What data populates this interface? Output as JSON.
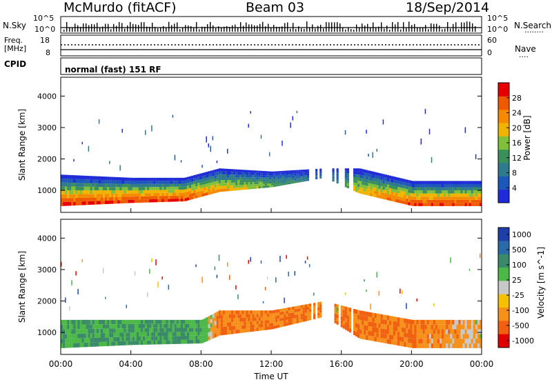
{
  "header": {
    "station": "McMurdo (fitACF)",
    "beam": "Beam 03",
    "date": "18/Sep/2014"
  },
  "strip": {
    "nsky_label": "N.Sky",
    "nsearch_label": "N.Search",
    "left_ticks": [
      "10^5",
      "10^0"
    ],
    "right_ticks": [
      "10^5",
      "10^0"
    ],
    "freq_label_1": "Freq.",
    "freq_label_2": "[MHz]",
    "freq_ticks": [
      "18",
      "8"
    ],
    "nave_label": "Nave",
    "nave_ticks": [
      "60",
      "0"
    ],
    "cpid_label": "CPID",
    "cpid_value": "normal (fast) 151 RF"
  },
  "colors": {
    "power": [
      "#1f2bd6",
      "#1d57b8",
      "#2f7a8c",
      "#3a8f5a",
      "#7fbf3a",
      "#f0b400",
      "#f58a00",
      "#ef5a00",
      "#e50000"
    ],
    "velocity": [
      "#1f3fa8",
      "#2a6aa8",
      "#3a8a6a",
      "#4cb848",
      "#c8c8c8",
      "#f5c000",
      "#f5901a",
      "#f06010",
      "#e00000"
    ]
  },
  "chart_data": [
    {
      "type": "heatmap",
      "panel": "power",
      "ylabel": "Slant Range [km]",
      "yticks": [
        "1000",
        "2000",
        "3000",
        "4000"
      ],
      "ylim": [
        300,
        4600
      ],
      "xlim_hours": [
        0,
        24
      ],
      "colorbar_label": "Power [dB]",
      "colorbar_ticks": [
        "4",
        "8",
        "12",
        "16",
        "20",
        "24",
        "28"
      ],
      "colorbar_range": [
        0,
        32
      ],
      "echo_band": [
        {
          "ut": "00:00",
          "bottom_km": 500,
          "top_km": 1500,
          "peak_db": 28
        },
        {
          "ut": "04:00",
          "bottom_km": 600,
          "top_km": 1400,
          "peak_db": 28
        },
        {
          "ut": "07:00",
          "bottom_km": 650,
          "top_km": 1400,
          "peak_db": 28
        },
        {
          "ut": "09:00",
          "bottom_km": 950,
          "top_km": 1700,
          "peak_db": 22
        },
        {
          "ut": "12:00",
          "bottom_km": 1100,
          "top_km": 1600,
          "peak_db": 14
        },
        {
          "ut": "15:00",
          "bottom_km": 1400,
          "top_km": 1700,
          "peak_db": 6
        },
        {
          "ut": "17:00",
          "bottom_km": 900,
          "top_km": 1700,
          "peak_db": 20
        },
        {
          "ut": "20:00",
          "bottom_km": 500,
          "top_km": 1300,
          "peak_db": 28
        },
        {
          "ut": "24:00",
          "bottom_km": 500,
          "top_km": 1300,
          "peak_db": 28
        }
      ]
    },
    {
      "type": "heatmap",
      "panel": "velocity",
      "ylabel": "Slant Range [km]",
      "yticks": [
        "1000",
        "2000",
        "3000",
        "4000"
      ],
      "ylim": [
        300,
        4600
      ],
      "xlim_hours": [
        0,
        24
      ],
      "xlabel": "Time UT",
      "xticks": [
        "00:00",
        "04:00",
        "08:00",
        "12:00",
        "16:00",
        "20:00",
        "00:00"
      ],
      "colorbar_label": "Velocity [m s^-1]",
      "colorbar_ticks": [
        "1000",
        "500",
        "100",
        "25",
        "-25",
        "-100",
        "-500",
        "-1000"
      ],
      "echo_band": [
        {
          "ut": "00:00",
          "bottom_km": 500,
          "top_km": 1400,
          "velocity": 100
        },
        {
          "ut": "04:00",
          "bottom_km": 600,
          "top_km": 1400,
          "velocity": 100
        },
        {
          "ut": "08:00",
          "bottom_km": 650,
          "top_km": 1400,
          "velocity": 100
        },
        {
          "ut": "09:00",
          "bottom_km": 900,
          "top_km": 1700,
          "velocity": -100
        },
        {
          "ut": "12:00",
          "bottom_km": 1100,
          "top_km": 1700,
          "velocity": -100
        },
        {
          "ut": "15:00",
          "bottom_km": 1500,
          "top_km": 2000,
          "velocity": -100
        },
        {
          "ut": "17:00",
          "bottom_km": 800,
          "top_km": 1700,
          "velocity": -100
        },
        {
          "ut": "20:00",
          "bottom_km": 500,
          "top_km": 1400,
          "velocity": -100
        },
        {
          "ut": "24:00",
          "bottom_km": 500,
          "top_km": 1400,
          "velocity": -25
        }
      ]
    }
  ]
}
